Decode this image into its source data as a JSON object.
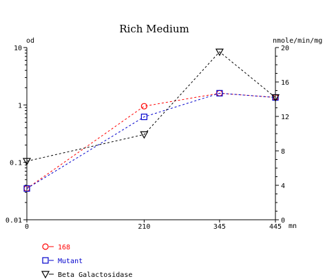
{
  "chart_data": {
    "type": "line",
    "title": "Rich Medium",
    "x": [
      0,
      210,
      345,
      445
    ],
    "x_ticks": [
      "0",
      "210",
      "345",
      "445"
    ],
    "xlabel": "mn",
    "xlim": [
      0,
      445
    ],
    "y_left": {
      "label": "od",
      "scale": "log",
      "range": [
        0.01,
        10
      ],
      "ticks": [
        "0.01",
        "0.1",
        "1",
        "10"
      ]
    },
    "y_right": {
      "label": "nmole/min/mg",
      "scale": "linear",
      "range": [
        0,
        20
      ],
      "ticks": [
        "0",
        "4",
        "8",
        "12",
        "16",
        "20"
      ]
    },
    "grid": false,
    "legend_position": "bottom-left",
    "series": [
      {
        "name": "168",
        "axis": "left",
        "color": "#ff0000",
        "marker": "circle",
        "values": [
          0.035,
          0.95,
          1.6,
          1.35
        ]
      },
      {
        "name": "Mutant",
        "axis": "left",
        "color": "#0000cc",
        "marker": "square",
        "values": [
          0.035,
          0.62,
          1.6,
          1.35
        ]
      },
      {
        "name": "Beta Galactosidase",
        "axis": "right",
        "color": "#000000",
        "marker": "triangle-down",
        "values": [
          6.8,
          9.9,
          19.5,
          14.2
        ]
      }
    ]
  }
}
